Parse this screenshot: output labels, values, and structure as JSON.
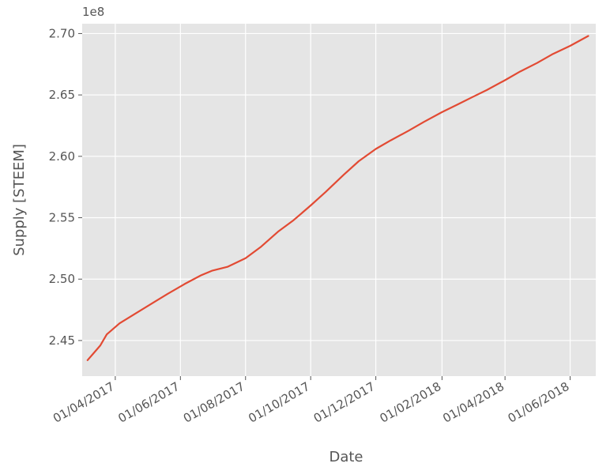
{
  "chart_data": {
    "type": "line",
    "xlabel": "Date",
    "ylabel": "Supply [STEEM]",
    "y_offset_label": "1e8",
    "y_multiplier": 100000000,
    "ylim": [
      2.421,
      2.708
    ],
    "xlim": [
      "2017-03-01",
      "2018-06-25"
    ],
    "grid": true,
    "x_ticks": [
      {
        "date": "2017-04-01",
        "label": "01/04/2017"
      },
      {
        "date": "2017-06-01",
        "label": "01/06/2017"
      },
      {
        "date": "2017-08-01",
        "label": "01/08/2017"
      },
      {
        "date": "2017-10-01",
        "label": "01/10/2017"
      },
      {
        "date": "2017-12-01",
        "label": "01/12/2017"
      },
      {
        "date": "2018-02-01",
        "label": "01/02/2018"
      },
      {
        "date": "2018-04-01",
        "label": "01/04/2018"
      },
      {
        "date": "2018-06-01",
        "label": "01/06/2018"
      }
    ],
    "y_ticks": [
      {
        "value": 2.45,
        "label": "2.45"
      },
      {
        "value": 2.5,
        "label": "2.50"
      },
      {
        "value": 2.55,
        "label": "2.55"
      },
      {
        "value": 2.6,
        "label": "2.60"
      },
      {
        "value": 2.65,
        "label": "2.65"
      },
      {
        "value": 2.7,
        "label": "2.70"
      }
    ],
    "series": [
      {
        "color": "#e24a33",
        "points": [
          {
            "x": "2017-03-06",
            "y": 2.434
          },
          {
            "x": "2017-03-12",
            "y": 2.44
          },
          {
            "x": "2017-03-18",
            "y": 2.446
          },
          {
            "x": "2017-03-24",
            "y": 2.455
          },
          {
            "x": "2017-04-05",
            "y": 2.464
          },
          {
            "x": "2017-04-20",
            "y": 2.472
          },
          {
            "x": "2017-05-05",
            "y": 2.48
          },
          {
            "x": "2017-05-20",
            "y": 2.488
          },
          {
            "x": "2017-06-05",
            "y": 2.496
          },
          {
            "x": "2017-06-20",
            "y": 2.503
          },
          {
            "x": "2017-07-01",
            "y": 2.507
          },
          {
            "x": "2017-07-15",
            "y": 2.51
          },
          {
            "x": "2017-08-01",
            "y": 2.517
          },
          {
            "x": "2017-08-15",
            "y": 2.526
          },
          {
            "x": "2017-09-01",
            "y": 2.539
          },
          {
            "x": "2017-09-15",
            "y": 2.548
          },
          {
            "x": "2017-10-01",
            "y": 2.56
          },
          {
            "x": "2017-10-15",
            "y": 2.571
          },
          {
            "x": "2017-11-01",
            "y": 2.585
          },
          {
            "x": "2017-11-15",
            "y": 2.596
          },
          {
            "x": "2017-12-01",
            "y": 2.606
          },
          {
            "x": "2017-12-15",
            "y": 2.613
          },
          {
            "x": "2018-01-01",
            "y": 2.621
          },
          {
            "x": "2018-01-15",
            "y": 2.628
          },
          {
            "x": "2018-02-01",
            "y": 2.636
          },
          {
            "x": "2018-02-15",
            "y": 2.642
          },
          {
            "x": "2018-03-01",
            "y": 2.648
          },
          {
            "x": "2018-03-15",
            "y": 2.654
          },
          {
            "x": "2018-04-01",
            "y": 2.662
          },
          {
            "x": "2018-04-15",
            "y": 2.669
          },
          {
            "x": "2018-05-01",
            "y": 2.676
          },
          {
            "x": "2018-05-15",
            "y": 2.683
          },
          {
            "x": "2018-06-01",
            "y": 2.69
          },
          {
            "x": "2018-06-18",
            "y": 2.698
          }
        ]
      }
    ]
  }
}
